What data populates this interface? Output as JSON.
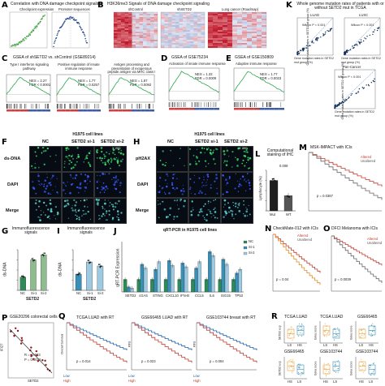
{
  "panels": {
    "A": {
      "label": "A",
      "title": "Correlation with DNA damage checkpoint signaling",
      "sub1": "Checkpoint expression",
      "sub2": "Promoter sequences"
    },
    "B": {
      "label": "B",
      "title": "H3K36me3 Signals of DNA damage checkpoint signaling",
      "cols": [
        "shControl",
        "shSETD2",
        "Lung cancer (Roadmap)"
      ]
    },
    "C": {
      "label": "C",
      "title": "GSEA of shSETD2 vs. shControl (GSE89214)",
      "plots": [
        {
          "title": "Type I interferon signaling pathway",
          "nes": "NES = 2.27",
          "fdr": "FDR < 0.0001"
        },
        {
          "title": "Positive regulation of innate immune response",
          "nes": "NES = 1.77",
          "fdr": "FDR = 0.0257"
        },
        {
          "title": "Antigen processing and presentation of exogenous peptide antigen via MHC class I",
          "nes": "NES = 1.87",
          "fdr": "FDR = 0.0092"
        }
      ]
    },
    "D": {
      "label": "D",
      "title": "GSEA of GSE75234",
      "plot": {
        "title": "Activation of innate immune response",
        "nes": "NES = 1.32",
        "fdr": "FDR = 0.0009"
      }
    },
    "E": {
      "label": "E",
      "title": "GSEA of GSE150809",
      "plot": {
        "title": "Adaptive immune response",
        "nes": "NES = 1.77",
        "fdr": "FDR = 0.0023"
      }
    },
    "K": {
      "label": "K",
      "title": "Whole genome mutation rates of patients with or without SETD2 mut in TCGA",
      "plots": [
        {
          "title": "LUAD",
          "stat": "Wilcox P < 0.001"
        },
        {
          "title": "LUSC",
          "stat": "Wilcox P < 0.001"
        },
        {
          "title": "Pan-Cancer",
          "stat": "Wilcox P < 0.001"
        }
      ],
      "ylabel": "Gene mutation rates in SETD2 wt group (%)",
      "xlabel": "Gene mutation rates in SETD2 mut group (%)"
    },
    "F": {
      "label": "F",
      "title": "H1975 cell lines",
      "cols": [
        "NC",
        "SETD2 si-1",
        "SETD2 si-2"
      ],
      "rows": [
        "ds-DNA",
        "DAPI",
        "Merge"
      ],
      "mag": "X 200"
    },
    "H": {
      "label": "H",
      "title": "H1975 cell lines",
      "cols": [
        "NC",
        "SETD2 si-1",
        "SETD2 si-2"
      ],
      "rows": [
        "pH2AX",
        "DAPI",
        "Merge"
      ],
      "mag": "X 200"
    },
    "L": {
      "label": "L",
      "title": "Computational staining of IHC",
      "ylabel": "Lymphocyte (%)",
      "cats": [
        "Mut",
        "WT"
      ],
      "stat": "0.008"
    },
    "M": {
      "label": "M",
      "title": "MSK-IMPACT with ICIs",
      "legend": [
        "Altered",
        "Unaltered"
      ],
      "stat": "p = 0.0387"
    },
    "G": {
      "label": "G",
      "title": "Immunofluorescence signals",
      "ylabel": "ds-DNA",
      "cats": [
        "NC",
        "Si-1",
        "Si-2"
      ],
      "xlabel": "SETD2"
    },
    "I": {
      "label": "I",
      "title": "Immunofluorescence signals",
      "ylabel": "ds-DNA",
      "cats": [
        "NC",
        "Si-1",
        "Si-2"
      ],
      "xlabel": "SETD2"
    },
    "J": {
      "label": "J",
      "title": "qRT-PCR in H1975 cell lines",
      "ylabel": "qRT-PCR Expression",
      "legend": [
        "NC",
        "Si-1",
        "Si-2"
      ],
      "genes": [
        "SETD2",
        "cGAS",
        "STING",
        "CXCL10",
        "IFN-B",
        "CCL5",
        "IL6",
        "ISG15",
        "TP53"
      ]
    },
    "N": {
      "label": "N",
      "title": "CheckMate-012 with ICIs",
      "legend": [
        "Altered",
        "Unaltered"
      ],
      "stat": "p = 0.04"
    },
    "O": {
      "label": "O",
      "title": "DFCI Melanoma with ICIs",
      "legend": [
        "Altered",
        "Unaltered"
      ],
      "stat": "p = 0.0039"
    },
    "P": {
      "label": "P",
      "title": "GSE20296 colorectal cells",
      "stat1": "R = -0.593",
      "stat2": "P = 0.0032",
      "xlabel": "SETD2",
      "ylabel": "IFI27"
    },
    "Q": {
      "label": "Q",
      "plots": [
        {
          "title": "TCGA LUAD with RT",
          "stat": "p = 0.014",
          "ylab": "Overall Survival"
        },
        {
          "title": "GSE66465 LUAD with RT",
          "stat": "p = 0.023",
          "ylab": "RFS"
        },
        {
          "title": "GSE103744 breast with RT",
          "stat": "p = 0.004",
          "ylab": "RFS"
        }
      ],
      "legend": [
        "Low",
        "High"
      ]
    },
    "R": {
      "label": "R",
      "plots": [
        {
          "title": "TCGA LUAD",
          "ylab": "SETD2 exp",
          "cats": [
            "LS",
            "HS"
          ]
        },
        {
          "title": "TCGA LUAD",
          "ylab": "Gsva score",
          "cats": [
            "LS",
            "HS"
          ]
        },
        {
          "title": "GSE66465",
          "ylab": "Gsva score",
          "cats": [
            "LS",
            "HS"
          ]
        },
        {
          "title": "GSE66465",
          "ylab": "SETD2 exp",
          "cats": [
            "HS",
            "LS"
          ]
        },
        {
          "title": "GSE103744",
          "ylab": "Gsva score",
          "cats": [
            "HS",
            "LS"
          ]
        },
        {
          "title": "GSE103744",
          "ylab": "Gsva score",
          "cats": [
            "HS",
            "LS"
          ]
        }
      ]
    },
    "chart_data": [
      {
        "type": "bar",
        "panel": "G",
        "categories": [
          "NC",
          "Si-1",
          "Si-2"
        ],
        "values": [
          13,
          30,
          35
        ],
        "ylim": [
          0,
          40
        ]
      },
      {
        "type": "bar",
        "panel": "I",
        "categories": [
          "NC",
          "Si-1",
          "Si-2"
        ],
        "values": [
          16,
          28,
          24
        ],
        "ylim": [
          0,
          40
        ]
      },
      {
        "type": "bar",
        "panel": "L",
        "categories": [
          "Mut",
          "WT"
        ],
        "values": [
          60,
          30
        ],
        "ylim": [
          0,
          80
        ]
      },
      {
        "type": "bar",
        "panel": "J",
        "categories": [
          "SETD2",
          "cGAS",
          "STING",
          "CXCL10",
          "IFN-B",
          "CCL5",
          "IL6",
          "ISG15",
          "TP53"
        ],
        "series": [
          {
            "name": "NC",
            "values": [
              1,
              1,
              1,
              1,
              1,
              1,
              1,
              1,
              1
            ]
          },
          {
            "name": "Si-1",
            "values": [
              0.4,
              2.2,
              1.8,
              2.5,
              2.3,
              1.9,
              3.2,
              2.6,
              1.5
            ]
          },
          {
            "name": "Si-2",
            "values": [
              0.3,
              1.9,
              2.4,
              2.1,
              2.0,
              2.4,
              2.9,
              2.2,
              1.8
            ]
          }
        ],
        "ylim": [
          0,
          4
        ]
      }
    ]
  }
}
